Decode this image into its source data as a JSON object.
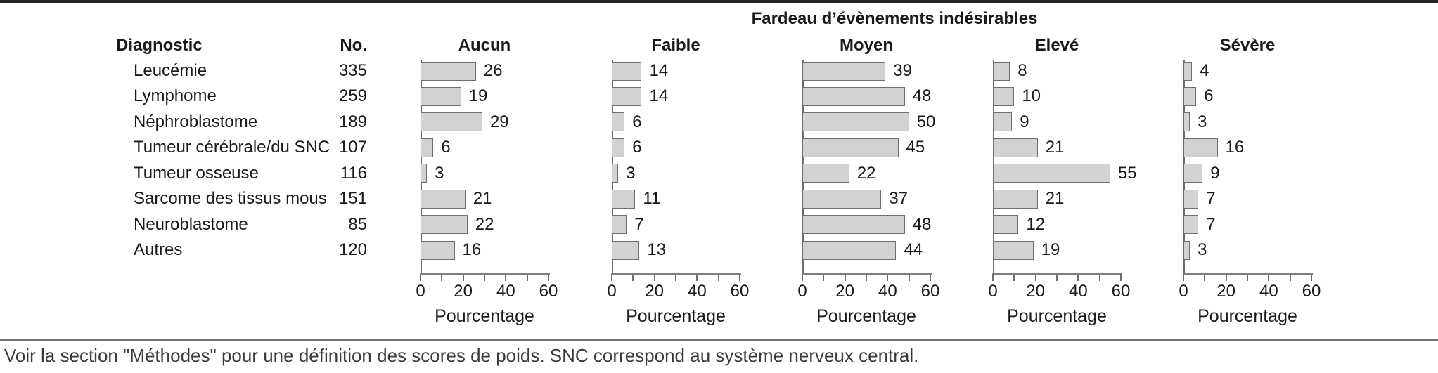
{
  "title": "Fardeau d’évènements indésirables",
  "columns": {
    "diagnostic": "Diagnostic",
    "count": "No."
  },
  "footnote": "Voir la section \"Méthodes\" pour une définition des scores de poids. SNC correspond au système nerveux central.",
  "chart_data": {
    "type": "bar",
    "orientation": "horizontal",
    "title": "Fardeau d’évènements indésirables",
    "categories": [
      "Leucémie",
      "Lymphome",
      "Néphroblastome",
      "Tumeur cérébrale/du SNC",
      "Tumeur osseuse",
      "Sarcome des tissus mous",
      "Neuroblastome",
      "Autres"
    ],
    "counts": [
      335,
      259,
      189,
      107,
      116,
      151,
      85,
      120
    ],
    "series": [
      {
        "name": "Aucun",
        "values": [
          26,
          19,
          29,
          6,
          3,
          21,
          22,
          16
        ]
      },
      {
        "name": "Faible",
        "values": [
          14,
          14,
          6,
          6,
          3,
          11,
          7,
          13
        ]
      },
      {
        "name": "Moyen",
        "values": [
          39,
          48,
          50,
          45,
          22,
          37,
          48,
          44
        ]
      },
      {
        "name": "Elevé",
        "values": [
          8,
          10,
          9,
          21,
          55,
          21,
          12,
          19
        ]
      },
      {
        "name": "Sévère",
        "values": [
          4,
          6,
          3,
          16,
          9,
          7,
          7,
          3
        ]
      }
    ],
    "xlabel": "Pourcentage",
    "xlim": [
      0,
      60
    ],
    "xticks": [
      0,
      20,
      40,
      60
    ],
    "minor_ticks": [
      0,
      10,
      20,
      30,
      40,
      50,
      60
    ],
    "bar_fill": "#d2d2d2",
    "bar_border": "#6f6f6f",
    "grid": false,
    "value_labels": true
  }
}
